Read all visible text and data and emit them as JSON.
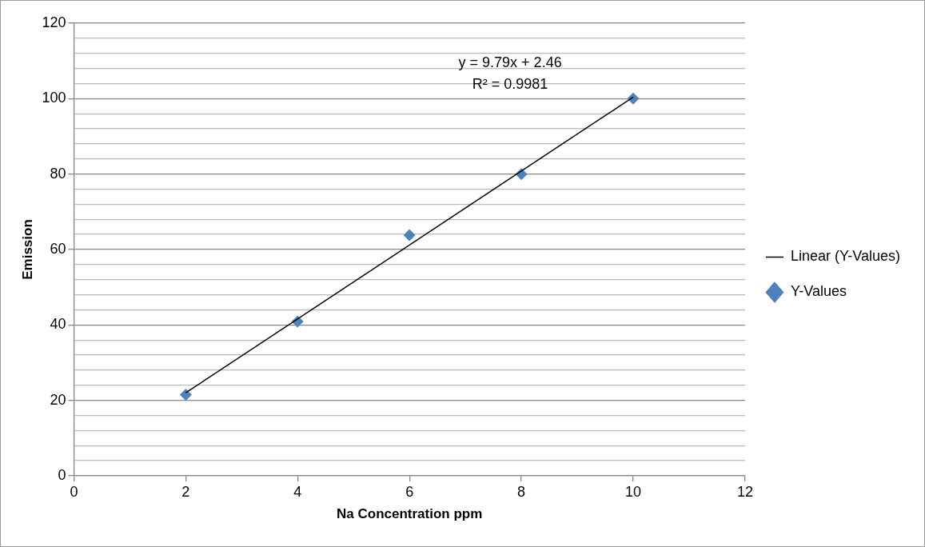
{
  "chart_data": {
    "type": "scatter",
    "xlabel": "Na Concentration ppm",
    "ylabel": "Emission",
    "x": [
      2,
      4,
      6,
      8,
      10
    ],
    "series": [
      {
        "name": "Y-Values",
        "color": "#4f81bd",
        "values": [
          21.5,
          40.9,
          63.8,
          80,
          100
        ],
        "marker": "diamond"
      },
      {
        "name": "Linear (Y-Values)",
        "type": "line",
        "color": "#000000",
        "x": [
          2,
          10
        ],
        "values": [
          22,
          100.4
        ],
        "marker": "none"
      }
    ],
    "xlim": [
      0,
      12
    ],
    "xticks": [
      0,
      2,
      4,
      6,
      8,
      10,
      12
    ],
    "ylim": [
      0,
      120
    ],
    "yticks": [
      0,
      {
        "value": 4,
        "label": null
      },
      {
        "value": 8,
        "label": null
      },
      {
        "value": 12,
        "label": null
      },
      {
        "value": 16,
        "label": null
      },
      20,
      {
        "value": 24,
        "label": null
      },
      {
        "value": 28,
        "label": null
      },
      {
        "value": 32,
        "label": null
      },
      {
        "value": 36,
        "label": null
      },
      40,
      {
        "value": 44,
        "label": null
      },
      {
        "value": 48,
        "label": null
      },
      {
        "value": 52,
        "label": null
      },
      {
        "value": 56,
        "label": null
      },
      60,
      {
        "value": 64,
        "label": null
      },
      {
        "value": 68,
        "label": null
      },
      {
        "value": 72,
        "label": null
      },
      {
        "value": 76,
        "label": null
      },
      80,
      {
        "value": 84,
        "label": null
      },
      {
        "value": 88,
        "label": null
      },
      {
        "value": 92,
        "label": null
      },
      {
        "value": 96,
        "label": null
      },
      100,
      {
        "value": 104,
        "label": null
      },
      {
        "value": 108,
        "label": null
      },
      {
        "value": 112,
        "label": null
      },
      {
        "value": 116,
        "label": null
      },
      120
    ],
    "grid": "y",
    "legend": "right",
    "annotations": [
      "y = 9.79x + 2.46",
      "R² = 0.9981"
    ]
  }
}
